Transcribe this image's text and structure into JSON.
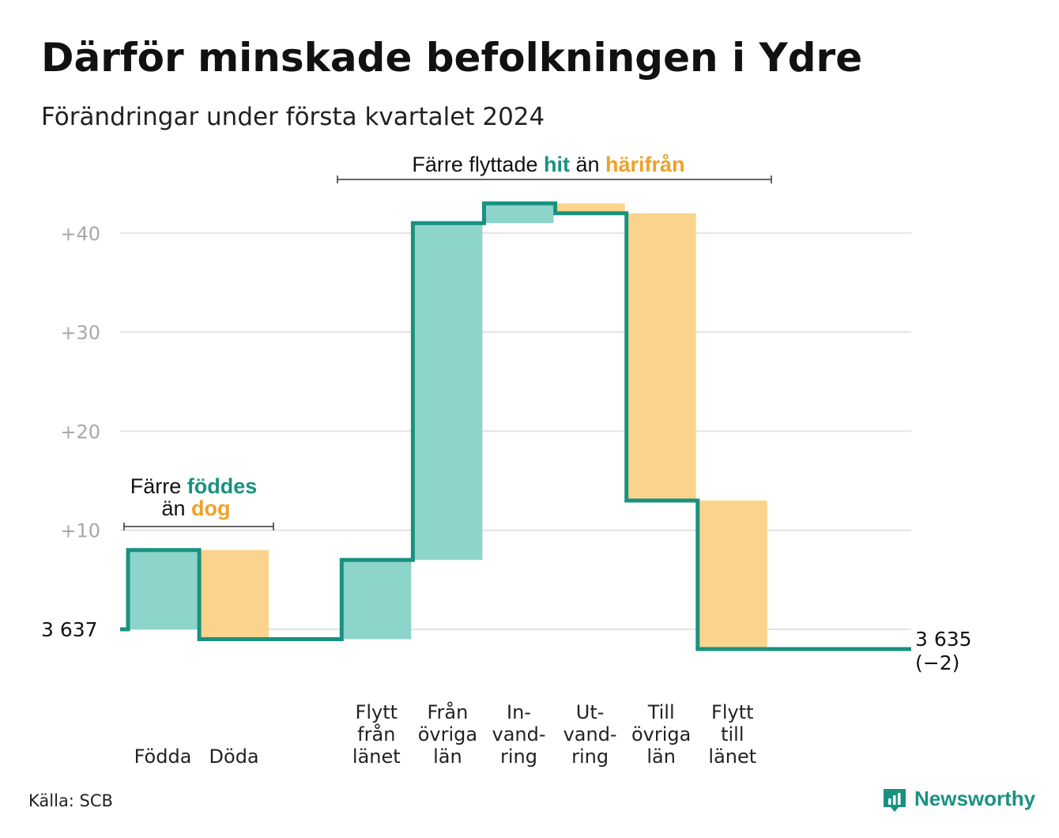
{
  "title": "Därför minskade befolkningen i Ydre",
  "subtitle": "Förändringar under första kvartalet 2024",
  "source": "Källa: SCB",
  "brand": "Newsworthy",
  "colors": {
    "increase_fill": "#8dd4cb",
    "decrease_fill": "#fad48c",
    "line": "#1a9180",
    "accent_teal": "#1a9180",
    "accent_orange": "#f0a028",
    "grid": "#e3e3e3"
  },
  "annotations": {
    "births": {
      "pre": "Färre ",
      "hi1": "föddes",
      "line2pre": "än ",
      "hi2": "dog"
    },
    "moves": {
      "pre": "Färre flyttade ",
      "hi1": "hit",
      "mid": " än ",
      "hi2": "härifrån"
    }
  },
  "start_label": "3  637",
  "end_label": "3 635",
  "end_change": "(−2)",
  "chart_data": {
    "type": "waterfall",
    "title": "Därför minskade befolkningen i Ydre",
    "subtitle": "Förändringar under första kvartalet 2024",
    "start_value": 3637,
    "end_value": 3635,
    "net_change": -2,
    "ylim_relative": [
      -4,
      45
    ],
    "yticks": [
      10,
      20,
      30,
      40
    ],
    "ytick_labels": [
      "+10",
      "+20",
      "+30",
      "+40"
    ],
    "grid": true,
    "steps": [
      {
        "label": [
          "Födda"
        ],
        "change": 8,
        "type": "increase"
      },
      {
        "label": [
          "Döda"
        ],
        "change": -9,
        "type": "decrease"
      },
      {
        "label": [
          ""
        ],
        "change": 0,
        "type": "gap"
      },
      {
        "label": [
          "Flytt",
          "från",
          "länet"
        ],
        "change": 8,
        "type": "increase"
      },
      {
        "label": [
          "Från",
          "övriga",
          "län"
        ],
        "change": 34,
        "type": "increase"
      },
      {
        "label": [
          "In-",
          "vand-",
          "ring"
        ],
        "change": 2,
        "type": "increase"
      },
      {
        "label": [
          "Ut-",
          "vand-",
          "ring"
        ],
        "change": -1,
        "type": "decrease"
      },
      {
        "label": [
          "Till",
          "övriga",
          "län"
        ],
        "change": -29,
        "type": "decrease"
      },
      {
        "label": [
          "Flytt",
          "till",
          "länet"
        ],
        "change": -15,
        "type": "decrease"
      }
    ]
  }
}
